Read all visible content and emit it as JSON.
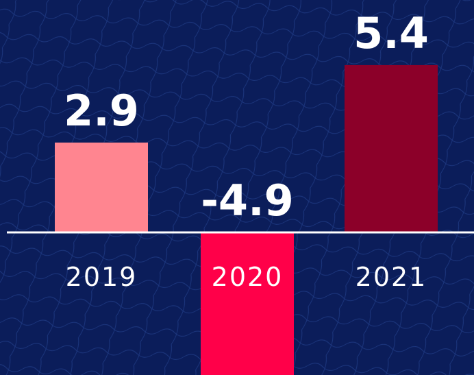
{
  "chart_data": {
    "type": "bar",
    "categories": [
      "2019",
      "2020",
      "2021"
    ],
    "values": [
      2.9,
      -4.9,
      5.4
    ],
    "colors": [
      "#ff8590",
      "#ff0049",
      "#8c0029"
    ],
    "ylim": [
      -4.6,
      7.5
    ]
  }
}
